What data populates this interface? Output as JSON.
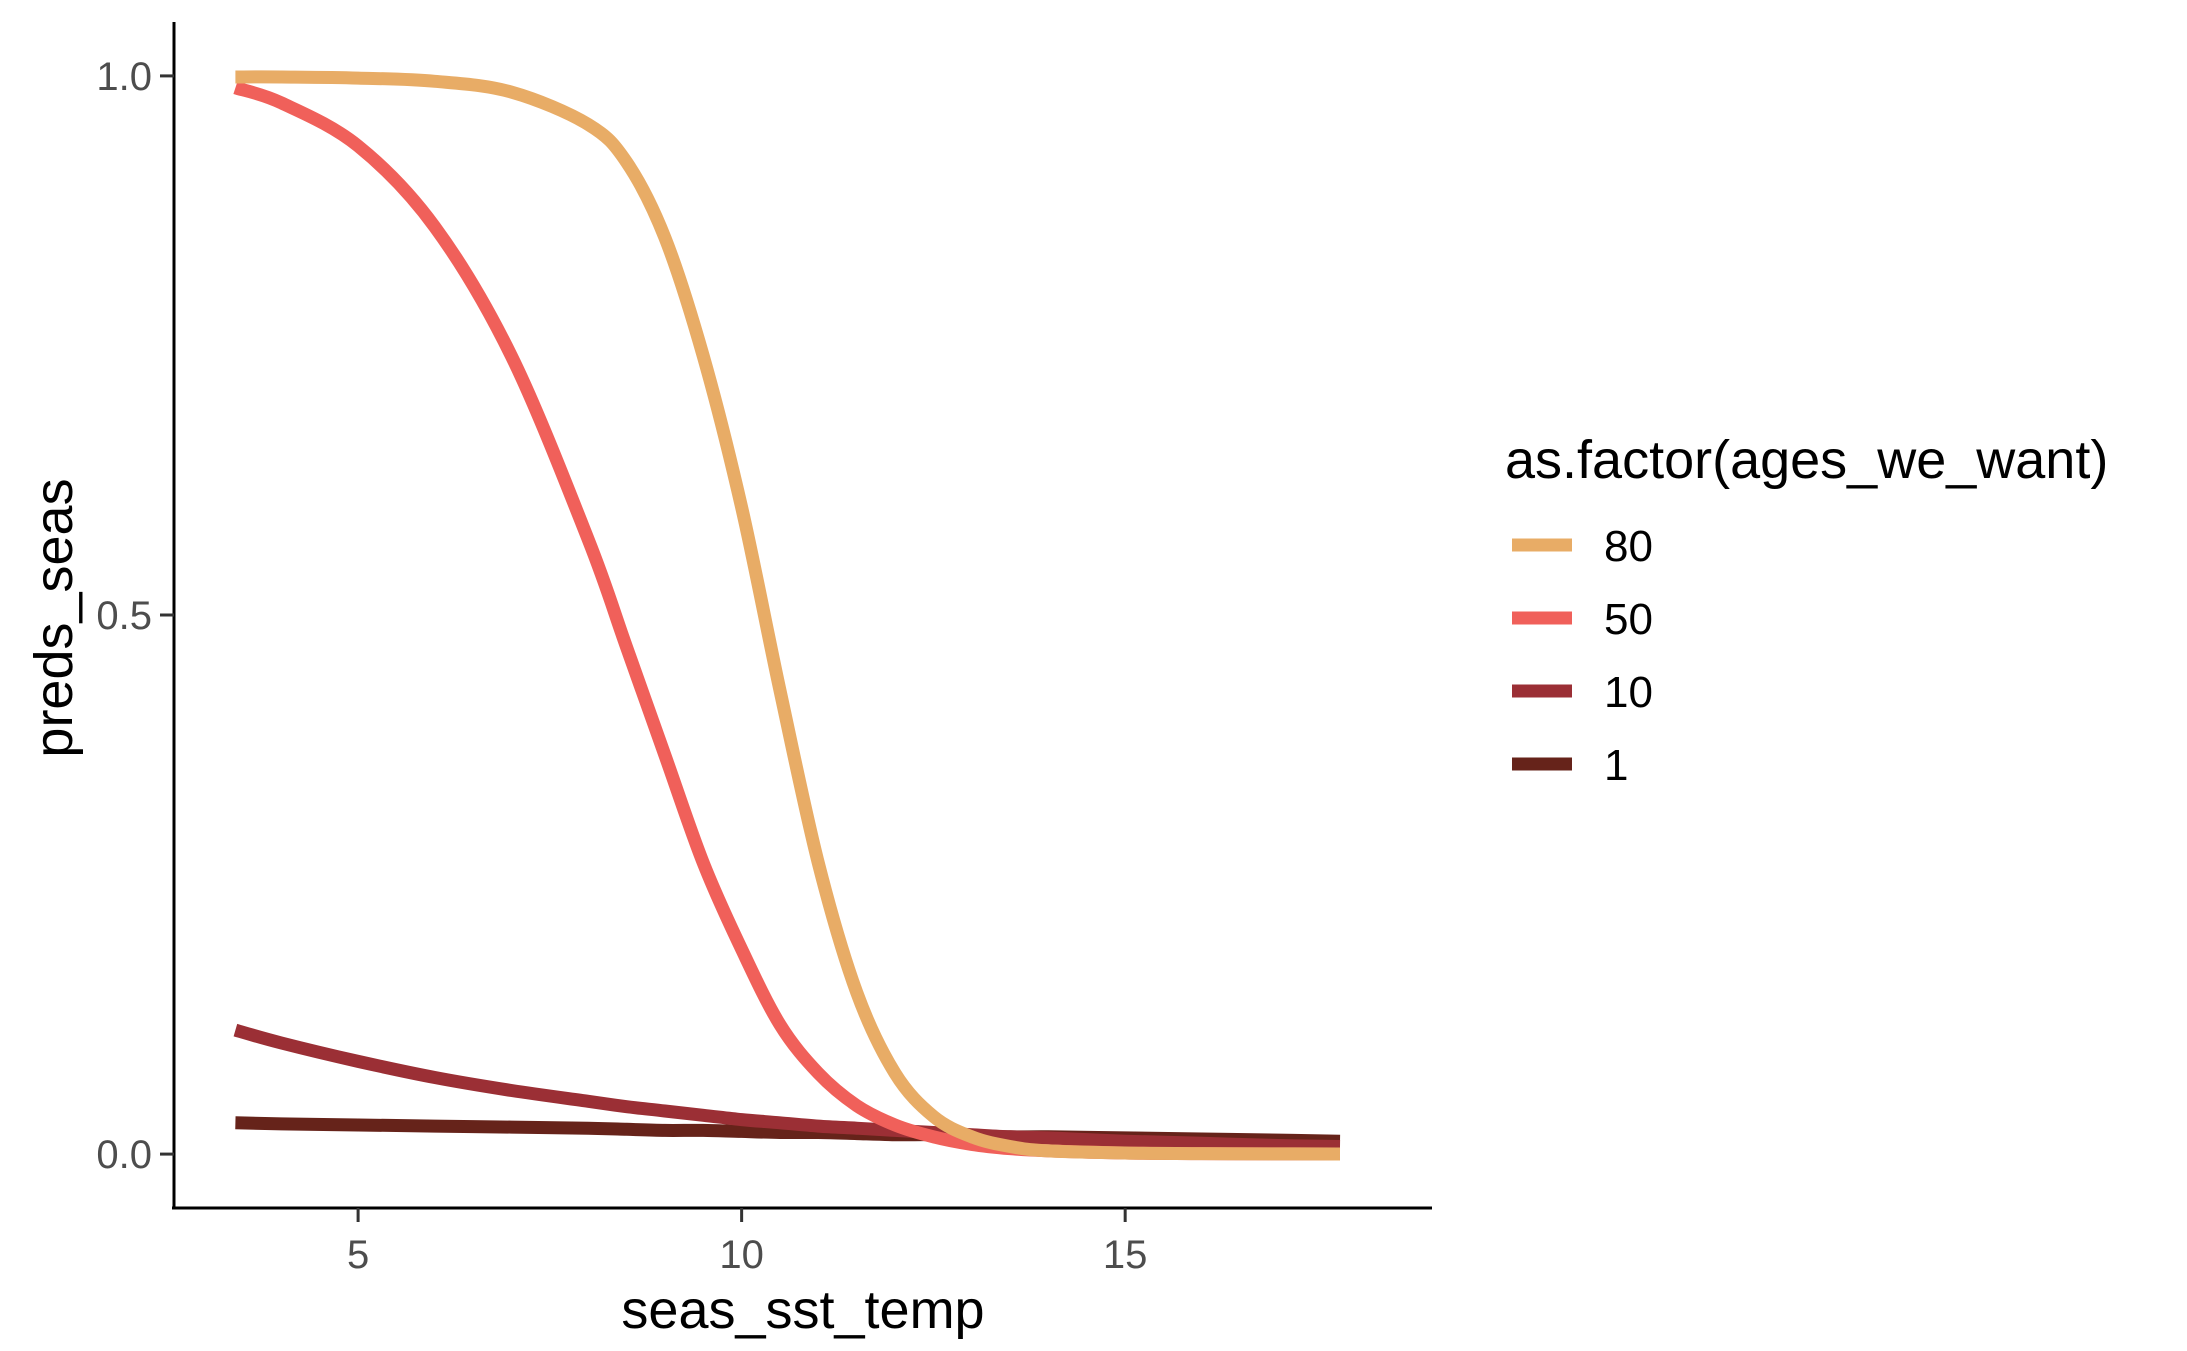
{
  "chart_data": {
    "type": "line",
    "xlabel": "seas_sst_temp",
    "ylabel": "preds_seas",
    "xlim": [
      2.6,
      19.0
    ],
    "ylim": [
      -0.05,
      1.05
    ],
    "x_ticks": [
      5,
      10,
      15
    ],
    "x_tick_labels": [
      "5",
      "10",
      "15"
    ],
    "y_ticks": [
      0.0,
      0.5,
      1.0
    ],
    "y_tick_labels": [
      "0.0",
      "0.5",
      "1.0"
    ],
    "grid": false,
    "legend": {
      "title": "as.factor(ages_we_want)",
      "placement": "right"
    },
    "x": [
      3.4,
      4,
      5,
      6,
      7,
      8,
      8.5,
      9,
      9.5,
      10,
      10.5,
      11,
      11.5,
      12,
      12.5,
      13,
      13.5,
      14,
      15,
      16,
      17,
      17.8
    ],
    "series": [
      {
        "name": "80",
        "color": "#E8AC66",
        "values": [
          0.999,
          0.999,
          0.998,
          0.995,
          0.985,
          0.955,
          0.92,
          0.85,
          0.74,
          0.6,
          0.43,
          0.27,
          0.15,
          0.075,
          0.035,
          0.016,
          0.007,
          0.003,
          0.001,
          0.0005,
          0.0002,
          0.0001
        ]
      },
      {
        "name": "50",
        "color": "#F0605A",
        "values": [
          0.989,
          0.975,
          0.935,
          0.86,
          0.74,
          0.57,
          0.47,
          0.37,
          0.27,
          0.19,
          0.12,
          0.075,
          0.045,
          0.027,
          0.016,
          0.009,
          0.005,
          0.003,
          0.001,
          0.0005,
          0.0002,
          0.0001
        ]
      },
      {
        "name": "10",
        "color": "#9B2F35",
        "values": [
          0.115,
          0.103,
          0.086,
          0.071,
          0.059,
          0.049,
          0.044,
          0.04,
          0.036,
          0.032,
          0.029,
          0.026,
          0.024,
          0.022,
          0.02,
          0.018,
          0.016,
          0.015,
          0.012,
          0.01,
          0.008,
          0.007
        ]
      },
      {
        "name": "1",
        "color": "#66231A",
        "values": [
          0.029,
          0.028,
          0.027,
          0.026,
          0.025,
          0.024,
          0.023,
          0.022,
          0.022,
          0.021,
          0.02,
          0.02,
          0.019,
          0.018,
          0.018,
          0.017,
          0.016,
          0.016,
          0.015,
          0.014,
          0.013,
          0.012
        ]
      }
    ]
  }
}
